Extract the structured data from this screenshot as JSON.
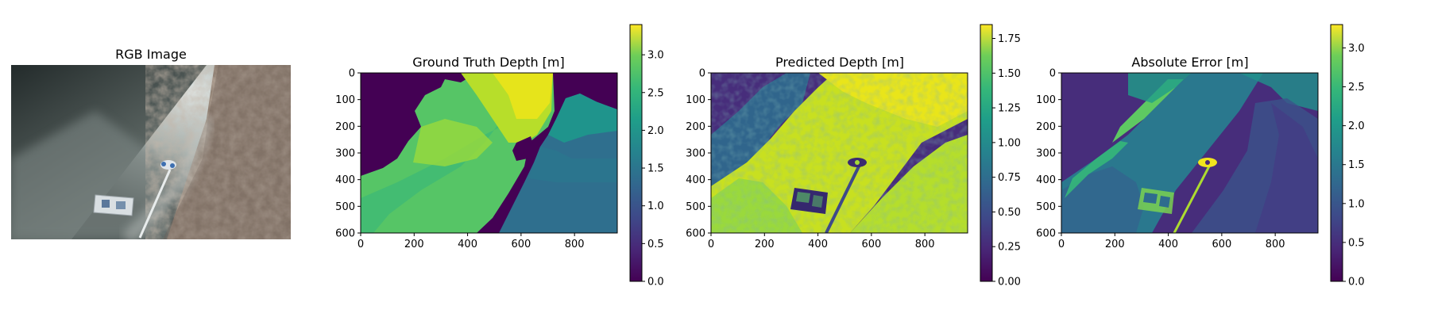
{
  "figure": {
    "panels": [
      {
        "id": "rgb",
        "title": "RGB Image"
      },
      {
        "id": "gt",
        "title": "Ground Truth Depth [m]"
      },
      {
        "id": "pred",
        "title": "Predicted Depth [m]"
      },
      {
        "id": "err",
        "title": "Absolute Error [m]"
      }
    ]
  },
  "chart_data": [
    {
      "type": "heatmap",
      "title": "Ground Truth Depth [m]",
      "colormap": "viridis",
      "xlim": [
        0,
        960
      ],
      "ylim": [
        600,
        0
      ],
      "xticks": [
        0,
        200,
        400,
        600,
        800
      ],
      "yticks": [
        0,
        100,
        200,
        300,
        400,
        500,
        600
      ],
      "colorbar": {
        "range": [
          0,
          3.4
        ],
        "ticks": [
          0.0,
          0.5,
          1.0,
          1.5,
          2.0,
          2.5,
          3.0
        ],
        "tick_labels": [
          "0.0",
          "0.5",
          "1.0",
          "1.5",
          "2.0",
          "2.5",
          "3.0"
        ]
      }
    },
    {
      "type": "heatmap",
      "title": "Predicted Depth [m]",
      "colormap": "viridis",
      "xlim": [
        0,
        960
      ],
      "ylim": [
        600,
        0
      ],
      "xticks": [
        0,
        200,
        400,
        600,
        800
      ],
      "yticks": [
        0,
        100,
        200,
        300,
        400,
        500,
        600
      ],
      "colorbar": {
        "range": [
          0,
          1.85
        ],
        "ticks": [
          0.0,
          0.25,
          0.5,
          0.75,
          1.0,
          1.25,
          1.5,
          1.75
        ],
        "tick_labels": [
          "0.00",
          "0.25",
          "0.50",
          "0.75",
          "1.00",
          "1.25",
          "1.50",
          "1.75"
        ]
      }
    },
    {
      "type": "heatmap",
      "title": "Absolute Error [m]",
      "colormap": "viridis",
      "xlim": [
        0,
        960
      ],
      "ylim": [
        600,
        0
      ],
      "xticks": [
        0,
        200,
        400,
        600,
        800
      ],
      "yticks": [
        0,
        100,
        200,
        300,
        400,
        500,
        600
      ],
      "colorbar": {
        "range": [
          0,
          3.3
        ],
        "ticks": [
          0.0,
          0.5,
          1.0,
          1.5,
          2.0,
          2.5,
          3.0
        ],
        "tick_labels": [
          "0.0",
          "0.5",
          "1.0",
          "1.5",
          "2.0",
          "2.5",
          "3.0"
        ]
      }
    }
  ]
}
